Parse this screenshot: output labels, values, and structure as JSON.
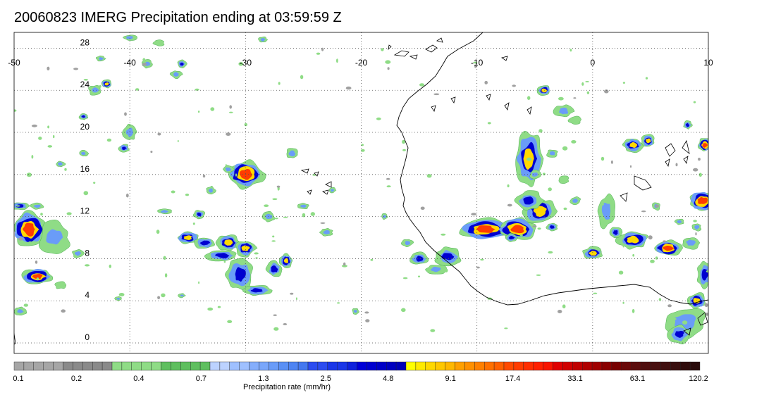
{
  "title": "20060823 IMERG Precipitation ending at 03:59:59 Z",
  "map": {
    "lon_range": [
      -50,
      10
    ],
    "lat_range": [
      -1,
      29.5
    ],
    "lon_ticks": [
      -50,
      -40,
      -30,
      -20,
      -10,
      0,
      10
    ],
    "lon_tick_labels": [
      "-50",
      "-40",
      "-30",
      "-20",
      "-10",
      "0",
      "10"
    ],
    "lat_ticks": [
      0,
      4,
      8,
      12,
      16,
      20,
      24,
      28
    ],
    "lat_tick_labels": [
      "0",
      "4",
      "8",
      "12",
      "16",
      "20",
      "24",
      "28"
    ],
    "grid": "dotted",
    "coastline_color": "#000000",
    "background": "#ffffff"
  },
  "colorbar": {
    "label": "Precipitation rate (mm/hr)",
    "tick_labels": [
      "0.1",
      "0.2",
      "0.4",
      "0.7",
      "1.3",
      "2.5",
      "4.8",
      "9.1",
      "17.4",
      "33.1",
      "63.1",
      "120.2"
    ],
    "colors": [
      "#a6a6a6",
      "#a6a6a6",
      "#a6a6a6",
      "#a6a6a6",
      "#a6a6a6",
      "#8a8a8a",
      "#8a8a8a",
      "#8a8a8a",
      "#8a8a8a",
      "#8a8a8a",
      "#8fdc86",
      "#8fdc86",
      "#8fdc86",
      "#8fdc86",
      "#8fdc86",
      "#5fbf5f",
      "#5fbf5f",
      "#5fbf5f",
      "#5fbf5f",
      "#5fbf5f",
      "#bcd2ff",
      "#bcd2ff",
      "#9fc0ff",
      "#9fc0ff",
      "#85aefc",
      "#7aa7fb",
      "#6a9cf8",
      "#5a90f5",
      "#4e84f2",
      "#4478ef",
      "#2c4cf0",
      "#2c4cf0",
      "#1a36e8",
      "#1a36e8",
      "#0f22dd",
      "#0000d8",
      "#0000d0",
      "#0000c8",
      "#0000c0",
      "#0000b8",
      "#ffff00",
      "#ffea00",
      "#ffd800",
      "#ffc800",
      "#ffb800",
      "#ffa000",
      "#ff9000",
      "#ff8000",
      "#ff7000",
      "#ff6000",
      "#ff4a00",
      "#ff3c00",
      "#ff2e00",
      "#ff2000",
      "#f81400",
      "#e00000",
      "#d00000",
      "#c00000",
      "#b00000",
      "#a00000",
      "#8a0000",
      "#780000",
      "#6a0808",
      "#5c0c0c",
      "#500f0f",
      "#481010",
      "#401010",
      "#380e0e",
      "#300c0c",
      "#280a0a"
    ]
  },
  "shades": {
    "light": "#8fdc86",
    "mid": "#6a9cf8",
    "heavy": "#0000d0",
    "intense": "#ffd800",
    "extreme": "#ff3c00",
    "gray": "#a0a0a0"
  }
}
